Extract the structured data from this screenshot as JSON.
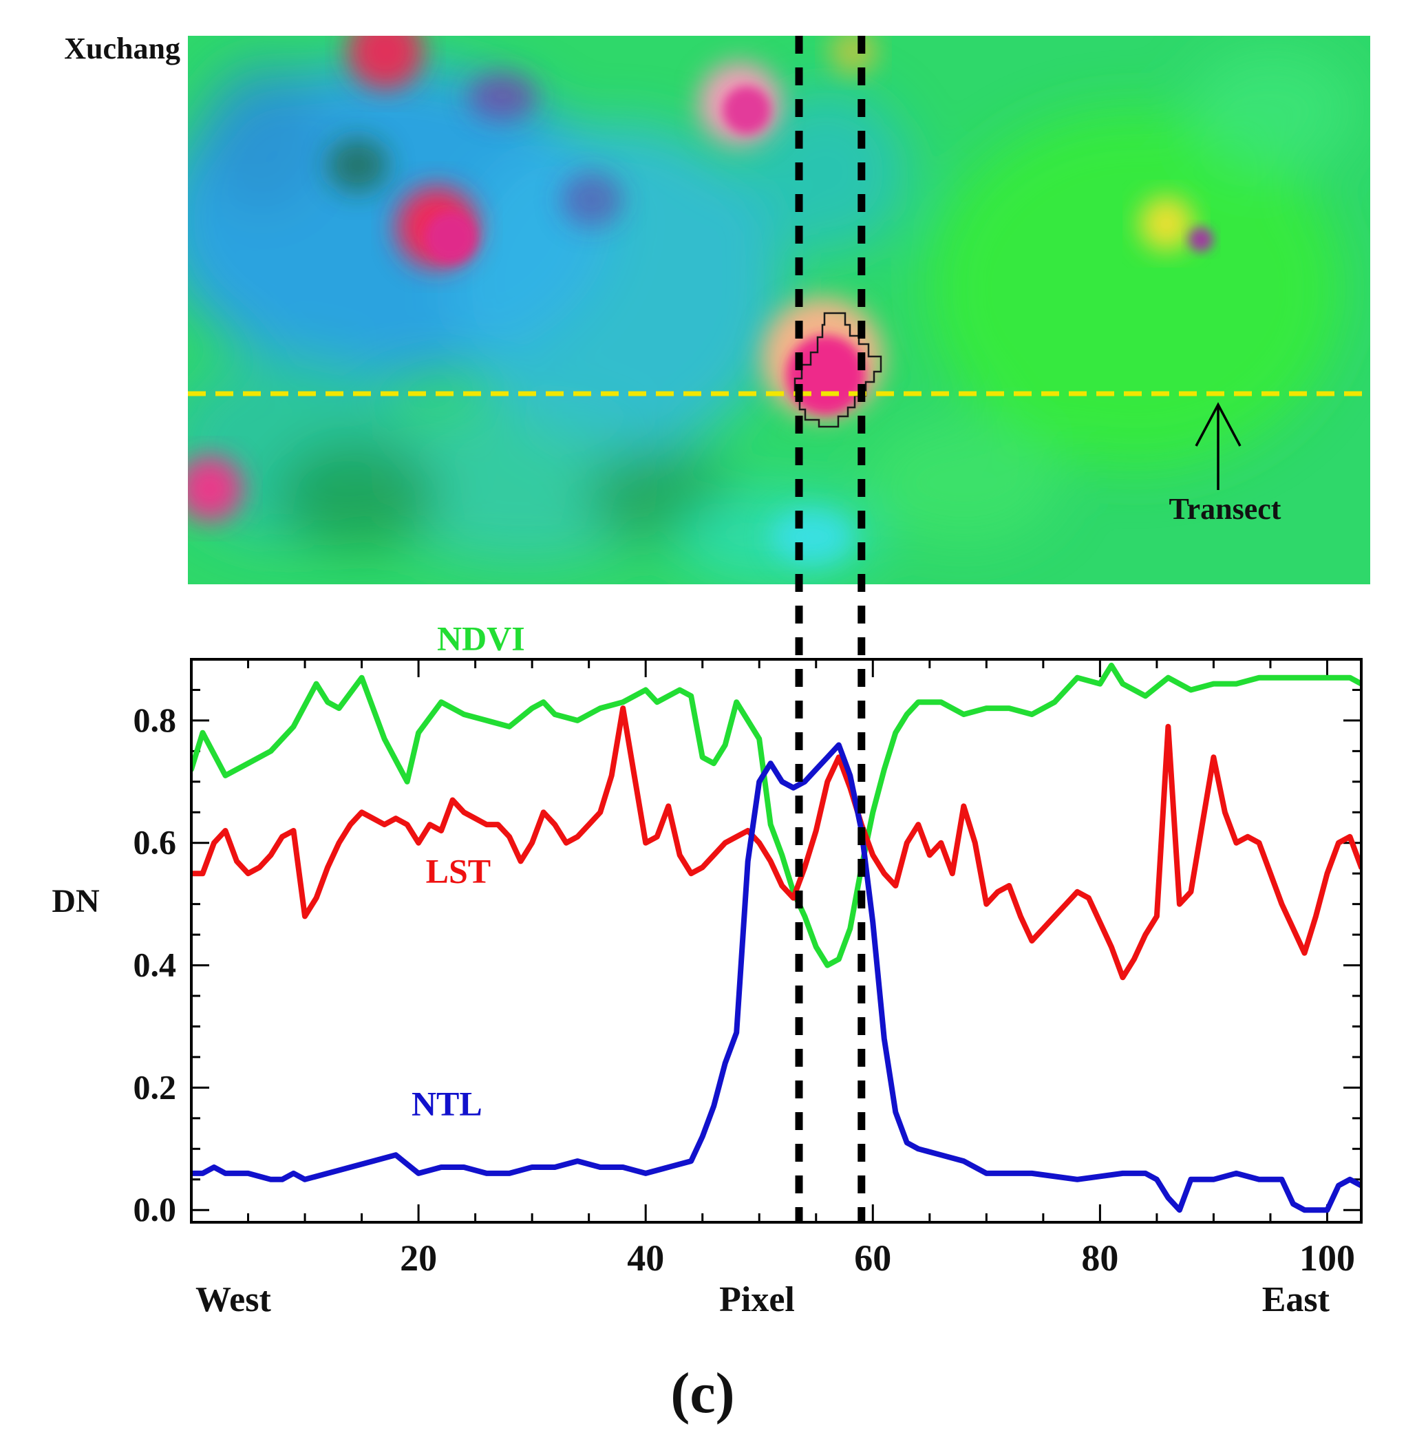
{
  "figure": {
    "panel_label": "(c)",
    "place_label": "Xuchang",
    "transect_label": "Transect"
  },
  "colors": {
    "ndvi": "#22dd33",
    "lst": "#ee1111",
    "ntl": "#1111cc",
    "transect": "#f2e600",
    "divider": "#000000",
    "image_base": "#2fd86a",
    "image_blue": "#2aa0e6",
    "image_urban": "#ee2a8a",
    "image_halo": "#f4b48a"
  },
  "chart_data": {
    "type": "line",
    "title": "",
    "xlabel": "Pixel",
    "ylabel": "DN",
    "x_left_label": "West",
    "x_right_label": "East",
    "xlim": [
      0,
      103
    ],
    "ylim": [
      -0.02,
      0.9
    ],
    "xticks": [
      20,
      40,
      60,
      80,
      100
    ],
    "yticks": [
      0.0,
      0.2,
      0.4,
      0.6,
      0.8
    ],
    "ytick_labels": [
      "0.0",
      "0.2",
      "0.4",
      "0.6",
      "0.8"
    ],
    "urban_boundaries": [
      53.5,
      59
    ],
    "series": [
      {
        "name": "NDVI",
        "color": "#22dd33",
        "x": [
          0,
          1,
          3,
          5,
          7,
          9,
          11,
          12,
          13,
          15,
          17,
          19,
          20,
          22,
          24,
          26,
          28,
          30,
          31,
          32,
          34,
          36,
          38,
          40,
          41,
          43,
          44,
          45,
          46,
          47,
          48,
          49,
          50,
          51,
          52,
          53,
          54,
          55,
          56,
          57,
          58,
          59,
          60,
          61,
          62,
          63,
          64,
          66,
          68,
          70,
          72,
          74,
          76,
          78,
          80,
          81,
          82,
          84,
          86,
          88,
          90,
          92,
          94,
          96,
          98,
          100,
          102,
          103
        ],
        "y": [
          0.72,
          0.78,
          0.71,
          0.73,
          0.75,
          0.79,
          0.86,
          0.83,
          0.82,
          0.87,
          0.77,
          0.7,
          0.78,
          0.83,
          0.81,
          0.8,
          0.79,
          0.82,
          0.83,
          0.81,
          0.8,
          0.82,
          0.83,
          0.85,
          0.83,
          0.85,
          0.84,
          0.74,
          0.73,
          0.76,
          0.83,
          0.8,
          0.77,
          0.63,
          0.58,
          0.52,
          0.48,
          0.43,
          0.4,
          0.41,
          0.46,
          0.56,
          0.65,
          0.72,
          0.78,
          0.81,
          0.83,
          0.83,
          0.81,
          0.82,
          0.82,
          0.81,
          0.83,
          0.87,
          0.86,
          0.89,
          0.86,
          0.84,
          0.87,
          0.85,
          0.86,
          0.86,
          0.87,
          0.87,
          0.87,
          0.87,
          0.87,
          0.86
        ]
      },
      {
        "name": "LST",
        "color": "#ee1111",
        "x": [
          0,
          1,
          2,
          3,
          4,
          5,
          6,
          7,
          8,
          9,
          10,
          11,
          12,
          13,
          14,
          15,
          16,
          17,
          18,
          19,
          20,
          21,
          22,
          23,
          24,
          25,
          26,
          27,
          28,
          29,
          30,
          31,
          32,
          33,
          34,
          35,
          36,
          37,
          38,
          39,
          40,
          41,
          42,
          43,
          44,
          45,
          46,
          47,
          48,
          49,
          50,
          51,
          52,
          53,
          54,
          55,
          56,
          57,
          58,
          59,
          60,
          61,
          62,
          63,
          64,
          65,
          66,
          67,
          68,
          69,
          70,
          71,
          72,
          73,
          74,
          75,
          76,
          77,
          78,
          79,
          80,
          81,
          82,
          83,
          84,
          85,
          86,
          87,
          88,
          89,
          90,
          91,
          92,
          93,
          94,
          95,
          96,
          97,
          98,
          99,
          100,
          101,
          102,
          103
        ],
        "y": [
          0.55,
          0.55,
          0.6,
          0.62,
          0.57,
          0.55,
          0.56,
          0.58,
          0.61,
          0.62,
          0.48,
          0.51,
          0.56,
          0.6,
          0.63,
          0.65,
          0.64,
          0.63,
          0.64,
          0.63,
          0.6,
          0.63,
          0.62,
          0.67,
          0.65,
          0.64,
          0.63,
          0.63,
          0.61,
          0.57,
          0.6,
          0.65,
          0.63,
          0.6,
          0.61,
          0.63,
          0.65,
          0.71,
          0.82,
          0.71,
          0.6,
          0.61,
          0.66,
          0.58,
          0.55,
          0.56,
          0.58,
          0.6,
          0.61,
          0.62,
          0.6,
          0.57,
          0.53,
          0.51,
          0.56,
          0.62,
          0.7,
          0.74,
          0.69,
          0.63,
          0.58,
          0.55,
          0.53,
          0.6,
          0.63,
          0.58,
          0.6,
          0.55,
          0.66,
          0.6,
          0.5,
          0.52,
          0.53,
          0.48,
          0.44,
          0.46,
          0.48,
          0.5,
          0.52,
          0.51,
          0.47,
          0.43,
          0.38,
          0.41,
          0.45,
          0.48,
          0.79,
          0.5,
          0.52,
          0.63,
          0.74,
          0.65,
          0.6,
          0.61,
          0.6,
          0.55,
          0.5,
          0.46,
          0.42,
          0.48,
          0.55,
          0.6,
          0.61,
          0.56
        ]
      },
      {
        "name": "NTL",
        "color": "#1111cc",
        "x": [
          0,
          1,
          2,
          3,
          5,
          7,
          8,
          9,
          10,
          12,
          14,
          16,
          18,
          20,
          22,
          24,
          26,
          28,
          30,
          32,
          34,
          36,
          38,
          40,
          42,
          44,
          45,
          46,
          47,
          48,
          49,
          50,
          51,
          52,
          53,
          54,
          55,
          56,
          57,
          58,
          59,
          60,
          61,
          62,
          63,
          64,
          66,
          68,
          70,
          74,
          78,
          82,
          84,
          85,
          86,
          87,
          88,
          90,
          92,
          94,
          96,
          97,
          98,
          100,
          101,
          102,
          103
        ],
        "y": [
          0.06,
          0.06,
          0.07,
          0.06,
          0.06,
          0.05,
          0.05,
          0.06,
          0.05,
          0.06,
          0.07,
          0.08,
          0.09,
          0.06,
          0.07,
          0.07,
          0.06,
          0.06,
          0.07,
          0.07,
          0.08,
          0.07,
          0.07,
          0.06,
          0.07,
          0.08,
          0.12,
          0.17,
          0.24,
          0.29,
          0.57,
          0.7,
          0.73,
          0.7,
          0.69,
          0.7,
          0.72,
          0.74,
          0.76,
          0.71,
          0.62,
          0.47,
          0.28,
          0.16,
          0.11,
          0.1,
          0.09,
          0.08,
          0.06,
          0.06,
          0.05,
          0.06,
          0.06,
          0.05,
          0.02,
          0.0,
          0.05,
          0.05,
          0.06,
          0.05,
          0.05,
          0.01,
          0.0,
          0.0,
          0.04,
          0.05,
          0.04
        ]
      }
    ],
    "series_labels": [
      {
        "text": "NDVI",
        "x": 25.5,
        "y": 0.915
      },
      {
        "text": "LST",
        "x": 23.5,
        "y": 0.535
      },
      {
        "text": "NTL",
        "x": 22.5,
        "y": 0.155
      }
    ]
  }
}
